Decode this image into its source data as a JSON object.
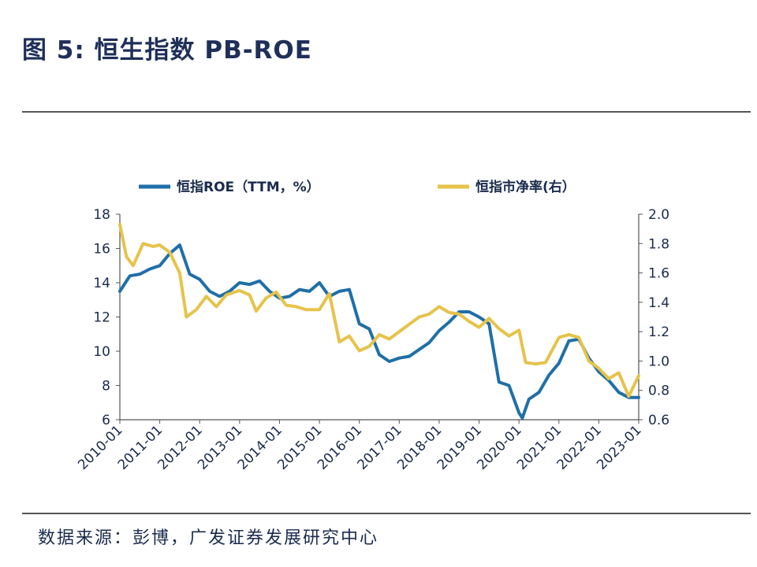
{
  "figure_title": "图 5:  恒生指数 PB-ROE",
  "source_note": "数据来源：彭博，广发证券发展研究中心",
  "chart_data": {
    "type": "line",
    "legend_position": "top",
    "grid": false,
    "x_tick_labels": [
      "2010-01",
      "2011-01",
      "2012-01",
      "2013-01",
      "2014-01",
      "2015-01",
      "2016-01",
      "2017-01",
      "2018-01",
      "2019-01",
      "2020-01",
      "2021-01",
      "2022-01",
      "2023-01"
    ],
    "y_left": {
      "lim": [
        6,
        18
      ],
      "ticks": [
        "6",
        "8",
        "10",
        "12",
        "14",
        "16",
        "18"
      ]
    },
    "y_right": {
      "lim": [
        0.6,
        2.0
      ],
      "ticks": [
        "0.6",
        "0.8",
        "1.0",
        "1.2",
        "1.4",
        "1.6",
        "1.8",
        "2.0"
      ]
    },
    "series": [
      {
        "name": "恒指ROE（TTM，%）",
        "axis": "left",
        "color": "#1f6fa8",
        "points": [
          [
            "2010-01",
            13.5
          ],
          [
            "2010-04",
            14.4
          ],
          [
            "2010-07",
            14.5
          ],
          [
            "2010-10",
            14.8
          ],
          [
            "2011-01",
            15.0
          ],
          [
            "2011-04",
            15.7
          ],
          [
            "2011-07",
            16.2
          ],
          [
            "2011-10",
            14.5
          ],
          [
            "2012-01",
            14.2
          ],
          [
            "2012-04",
            13.5
          ],
          [
            "2012-07",
            13.2
          ],
          [
            "2012-10",
            13.5
          ],
          [
            "2013-01",
            14.0
          ],
          [
            "2013-04",
            13.9
          ],
          [
            "2013-07",
            14.1
          ],
          [
            "2013-10",
            13.5
          ],
          [
            "2014-01",
            13.1
          ],
          [
            "2014-04",
            13.2
          ],
          [
            "2014-07",
            13.6
          ],
          [
            "2014-10",
            13.5
          ],
          [
            "2015-01",
            14.0
          ],
          [
            "2015-04",
            13.2
          ],
          [
            "2015-07",
            13.5
          ],
          [
            "2015-10",
            13.6
          ],
          [
            "2016-01",
            11.6
          ],
          [
            "2016-04",
            11.3
          ],
          [
            "2016-07",
            9.8
          ],
          [
            "2016-10",
            9.4
          ],
          [
            "2017-01",
            9.6
          ],
          [
            "2017-04",
            9.7
          ],
          [
            "2017-07",
            10.1
          ],
          [
            "2017-10",
            10.5
          ],
          [
            "2018-01",
            11.2
          ],
          [
            "2018-04",
            11.7
          ],
          [
            "2018-07",
            12.3
          ],
          [
            "2018-10",
            12.3
          ],
          [
            "2019-01",
            12.0
          ],
          [
            "2019-04",
            11.6
          ],
          [
            "2019-07",
            8.2
          ],
          [
            "2019-10",
            8.0
          ],
          [
            "2020-01",
            6.4
          ],
          [
            "2020-02",
            6.1
          ],
          [
            "2020-04",
            7.2
          ],
          [
            "2020-07",
            7.6
          ],
          [
            "2020-10",
            8.6
          ],
          [
            "2021-01",
            9.3
          ],
          [
            "2021-04",
            10.6
          ],
          [
            "2021-07",
            10.7
          ],
          [
            "2021-10",
            9.6
          ],
          [
            "2022-01",
            8.8
          ],
          [
            "2022-04",
            8.3
          ],
          [
            "2022-07",
            7.6
          ],
          [
            "2022-10",
            7.3
          ],
          [
            "2023-01",
            7.3
          ]
        ]
      },
      {
        "name": "恒指市净率(右）",
        "axis": "right",
        "color": "#e6c34a",
        "points": [
          [
            "2010-01",
            1.93
          ],
          [
            "2010-03",
            1.71
          ],
          [
            "2010-05",
            1.65
          ],
          [
            "2010-08",
            1.8
          ],
          [
            "2010-11",
            1.78
          ],
          [
            "2011-01",
            1.79
          ],
          [
            "2011-04",
            1.74
          ],
          [
            "2011-07",
            1.6
          ],
          [
            "2011-09",
            1.3
          ],
          [
            "2011-12",
            1.35
          ],
          [
            "2012-03",
            1.44
          ],
          [
            "2012-06",
            1.37
          ],
          [
            "2012-09",
            1.45
          ],
          [
            "2013-01",
            1.48
          ],
          [
            "2013-04",
            1.45
          ],
          [
            "2013-06",
            1.34
          ],
          [
            "2013-09",
            1.43
          ],
          [
            "2013-12",
            1.47
          ],
          [
            "2014-03",
            1.38
          ],
          [
            "2014-06",
            1.37
          ],
          [
            "2014-09",
            1.35
          ],
          [
            "2015-01",
            1.35
          ],
          [
            "2015-04",
            1.46
          ],
          [
            "2015-07",
            1.13
          ],
          [
            "2015-10",
            1.17
          ],
          [
            "2016-01",
            1.07
          ],
          [
            "2016-04",
            1.1
          ],
          [
            "2016-07",
            1.18
          ],
          [
            "2016-10",
            1.15
          ],
          [
            "2017-01",
            1.2
          ],
          [
            "2017-04",
            1.25
          ],
          [
            "2017-07",
            1.3
          ],
          [
            "2017-10",
            1.32
          ],
          [
            "2018-01",
            1.37
          ],
          [
            "2018-04",
            1.33
          ],
          [
            "2018-07",
            1.32
          ],
          [
            "2018-10",
            1.27
          ],
          [
            "2019-01",
            1.23
          ],
          [
            "2019-04",
            1.29
          ],
          [
            "2019-07",
            1.22
          ],
          [
            "2019-10",
            1.17
          ],
          [
            "2020-01",
            1.21
          ],
          [
            "2020-03",
            0.99
          ],
          [
            "2020-06",
            0.98
          ],
          [
            "2020-09",
            0.99
          ],
          [
            "2021-01",
            1.16
          ],
          [
            "2021-04",
            1.18
          ],
          [
            "2021-07",
            1.16
          ],
          [
            "2021-10",
            1.0
          ],
          [
            "2022-01",
            0.95
          ],
          [
            "2022-04",
            0.88
          ],
          [
            "2022-07",
            0.92
          ],
          [
            "2022-10",
            0.76
          ],
          [
            "2023-01",
            0.9
          ]
        ]
      }
    ]
  }
}
